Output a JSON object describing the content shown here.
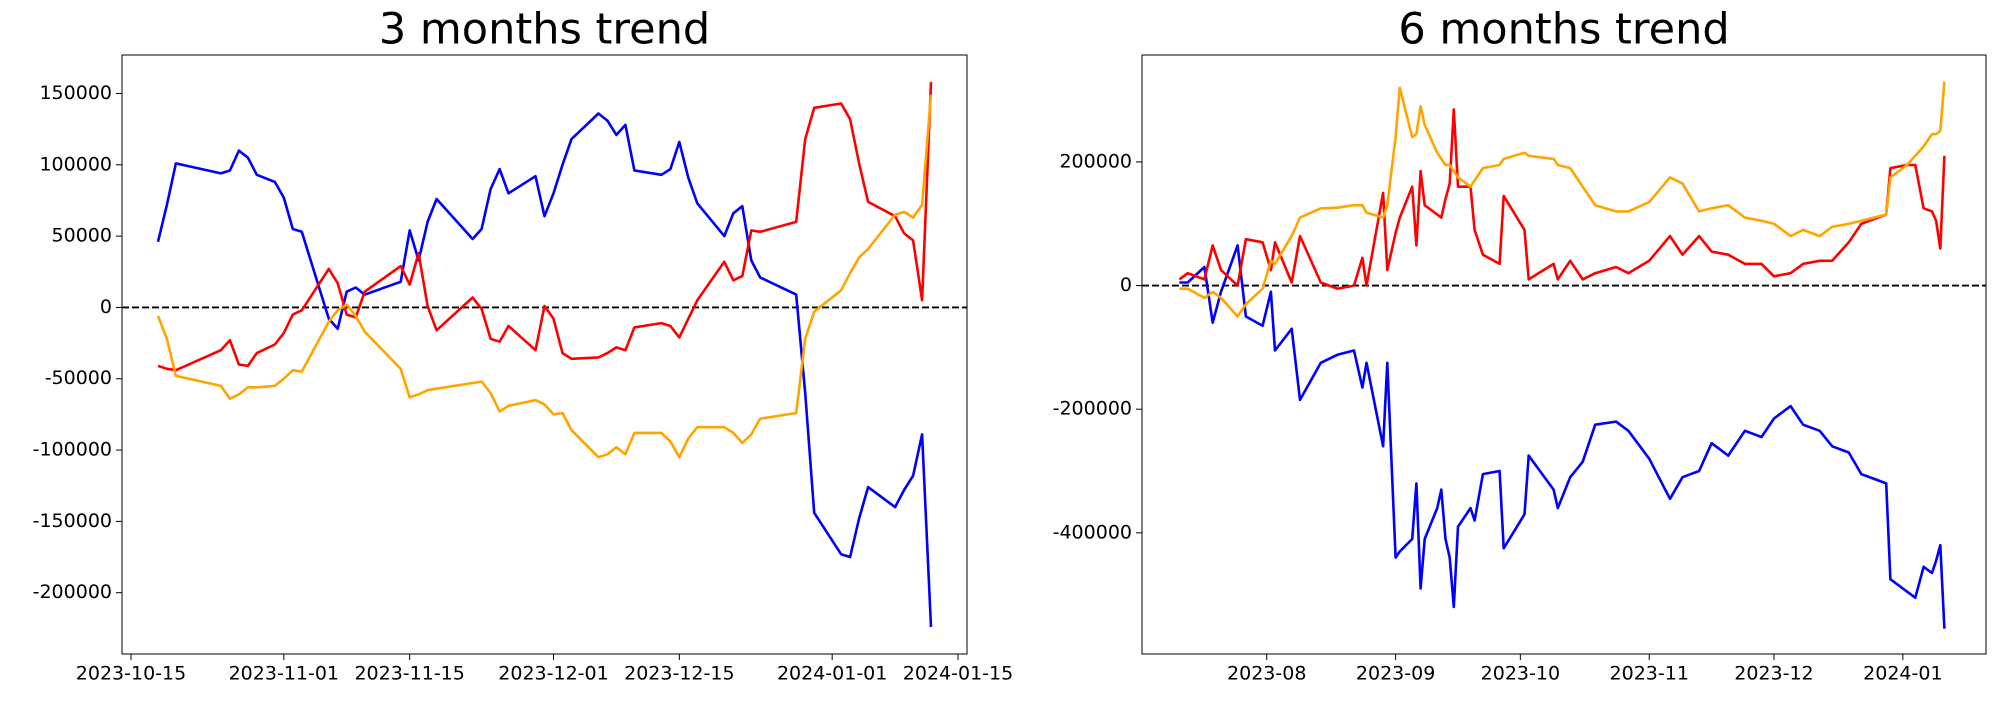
{
  "chart_data": [
    {
      "type": "line",
      "title": "3 months trend",
      "x": [
        "2023-10-18",
        "2023-10-19",
        "2023-10-20",
        "2023-10-25",
        "2023-10-26",
        "2023-10-27",
        "2023-10-28",
        "2023-10-29",
        "2023-10-31",
        "2023-11-01",
        "2023-11-02",
        "2023-11-03",
        "2023-11-06",
        "2023-11-07",
        "2023-11-08",
        "2023-11-09",
        "2023-11-10",
        "2023-11-14",
        "2023-11-15",
        "2023-11-16",
        "2023-11-17",
        "2023-11-18",
        "2023-11-22",
        "2023-11-23",
        "2023-11-24",
        "2023-11-25",
        "2023-11-26",
        "2023-11-29",
        "2023-11-30",
        "2023-12-01",
        "2023-12-02",
        "2023-12-03",
        "2023-12-06",
        "2023-12-07",
        "2023-12-08",
        "2023-12-09",
        "2023-12-10",
        "2023-12-13",
        "2023-12-14",
        "2023-12-15",
        "2023-12-16",
        "2023-12-17",
        "2023-12-20",
        "2023-12-21",
        "2023-12-22",
        "2023-12-23",
        "2023-12-24",
        "2023-12-28",
        "2023-12-29",
        "2023-12-30",
        "2024-01-02",
        "2024-01-03",
        "2024-01-04",
        "2024-01-05",
        "2024-01-08",
        "2024-01-09",
        "2024-01-10",
        "2024-01-11",
        "2024-01-12"
      ],
      "series": [
        {
          "color": "#0000ff",
          "values": [
            46000,
            72000,
            101000,
            94000,
            96000,
            110000,
            105000,
            93000,
            88000,
            77000,
            55000,
            53000,
            -8000,
            -15000,
            11000,
            14000,
            9000,
            18000,
            54000,
            33000,
            60000,
            76000,
            48000,
            55000,
            83000,
            97000,
            80000,
            92000,
            64000,
            80000,
            100000,
            118000,
            136000,
            131000,
            121000,
            128000,
            96000,
            93000,
            97000,
            116000,
            91000,
            73000,
            50000,
            66000,
            71000,
            33000,
            21000,
            9000,
            -60000,
            -144000,
            -173000,
            -175000,
            -148000,
            -126000,
            -140000,
            -128000,
            -118000,
            -89000,
            -224000
          ]
        },
        {
          "color": "#ff0000",
          "values": [
            -41000,
            -43000,
            -44000,
            -30000,
            -23000,
            -40000,
            -41000,
            -32000,
            -26000,
            -18000,
            -5000,
            -2000,
            27000,
            17000,
            -5000,
            -7000,
            11000,
            29000,
            16000,
            38000,
            1000,
            -16000,
            7000,
            -1000,
            -22000,
            -24000,
            -13000,
            -30000,
            1000,
            -8000,
            -32000,
            -36000,
            -35000,
            -32000,
            -28000,
            -30000,
            -14000,
            -11000,
            -13000,
            -21000,
            -8000,
            5000,
            32000,
            19000,
            22000,
            54000,
            53000,
            60000,
            118000,
            140000,
            143000,
            132000,
            101000,
            74000,
            64000,
            52000,
            47000,
            5000,
            158000
          ]
        },
        {
          "color": "#ffa500",
          "values": [
            -6000,
            -22000,
            -48000,
            -55000,
            -64000,
            -61000,
            -56000,
            -56000,
            -55000,
            -50000,
            -44000,
            -45000,
            -10000,
            -2000,
            2000,
            -6000,
            -17000,
            -43000,
            -63000,
            -61000,
            -58000,
            -57000,
            -53000,
            -52000,
            -60000,
            -73000,
            -69000,
            -65000,
            -68000,
            -75000,
            -74000,
            -86000,
            -105000,
            -103000,
            -98000,
            -103000,
            -88000,
            -88000,
            -94000,
            -105000,
            -92000,
            -84000,
            -84000,
            -88000,
            -95000,
            -89000,
            -78000,
            -74000,
            -22000,
            -3000,
            12000,
            24000,
            35000,
            41000,
            65000,
            67000,
            63000,
            72000,
            149000
          ]
        }
      ],
      "xlim": [
        "2023-10-14",
        "2024-01-16"
      ],
      "xticks": [
        "2023-10-15",
        "2023-11-01",
        "2023-11-15",
        "2023-12-01",
        "2023-12-15",
        "2024-01-01",
        "2024-01-15"
      ],
      "ylim": [
        -243000,
        177000
      ],
      "yticks": [
        -200000,
        -150000,
        -100000,
        -50000,
        0,
        50000,
        100000,
        150000
      ],
      "hline": 0
    },
    {
      "type": "line",
      "title": "6 months trend",
      "x": [
        "2023-07-11",
        "2023-07-13",
        "2023-07-17",
        "2023-07-19",
        "2023-07-21",
        "2023-07-25",
        "2023-07-27",
        "2023-07-31",
        "2023-08-02",
        "2023-08-03",
        "2023-08-07",
        "2023-08-09",
        "2023-08-14",
        "2023-08-18",
        "2023-08-22",
        "2023-08-24",
        "2023-08-25",
        "2023-08-29",
        "2023-08-30",
        "2023-09-01",
        "2023-09-02",
        "2023-09-05",
        "2023-09-06",
        "2023-09-07",
        "2023-09-08",
        "2023-09-11",
        "2023-09-12",
        "2023-09-13",
        "2023-09-14",
        "2023-09-15",
        "2023-09-16",
        "2023-09-19",
        "2023-09-20",
        "2023-09-22",
        "2023-09-26",
        "2023-09-27",
        "2023-10-02",
        "2023-10-03",
        "2023-10-09",
        "2023-10-10",
        "2023-10-13",
        "2023-10-16",
        "2023-10-19",
        "2023-10-24",
        "2023-10-27",
        "2023-11-01",
        "2023-11-06",
        "2023-11-09",
        "2023-11-13",
        "2023-11-16",
        "2023-11-20",
        "2023-11-24",
        "2023-11-28",
        "2023-12-01",
        "2023-12-05",
        "2023-12-08",
        "2023-12-12",
        "2023-12-15",
        "2023-12-19",
        "2023-12-22",
        "2023-12-28",
        "2023-12-29",
        "2024-01-02",
        "2024-01-04",
        "2024-01-06",
        "2024-01-08",
        "2024-01-09",
        "2024-01-10",
        "2024-01-11"
      ],
      "series": [
        {
          "color": "#0000ff",
          "values": [
            5000,
            5000,
            30000,
            -60000,
            -10000,
            65000,
            -50000,
            -65000,
            -10000,
            -105000,
            -70000,
            -185000,
            -125000,
            -112000,
            -105000,
            -165000,
            -125000,
            -260000,
            -125000,
            -440000,
            -430000,
            -410000,
            -320000,
            -490000,
            -410000,
            -360000,
            -330000,
            -410000,
            -440000,
            -520000,
            -390000,
            -360000,
            -380000,
            -305000,
            -300000,
            -425000,
            -370000,
            -275000,
            -330000,
            -360000,
            -310000,
            -285000,
            -225000,
            -220000,
            -235000,
            -280000,
            -345000,
            -310000,
            -300000,
            -255000,
            -275000,
            -235000,
            -245000,
            -215000,
            -195000,
            -225000,
            -235000,
            -260000,
            -270000,
            -305000,
            -320000,
            -475000,
            -495000,
            -505000,
            -455000,
            -465000,
            -445000,
            -420000,
            -555000
          ]
        },
        {
          "color": "#ff0000",
          "values": [
            10000,
            20000,
            10000,
            65000,
            25000,
            0,
            75000,
            70000,
            25000,
            70000,
            5000,
            80000,
            5000,
            -5000,
            0,
            45000,
            0,
            150000,
            25000,
            85000,
            110000,
            160000,
            65000,
            185000,
            130000,
            115000,
            110000,
            140000,
            165000,
            285000,
            160000,
            160000,
            90000,
            50000,
            35000,
            145000,
            90000,
            10000,
            35000,
            10000,
            40000,
            10000,
            20000,
            30000,
            20000,
            40000,
            80000,
            50000,
            80000,
            55000,
            50000,
            35000,
            35000,
            15000,
            20000,
            35000,
            40000,
            40000,
            70000,
            100000,
            115000,
            190000,
            195000,
            195000,
            125000,
            120000,
            105000,
            60000,
            210000
          ]
        },
        {
          "color": "#ffa500",
          "values": [
            -5000,
            -5000,
            -20000,
            -10000,
            -20000,
            -50000,
            -30000,
            -5000,
            40000,
            35000,
            80000,
            110000,
            125000,
            126000,
            130000,
            130000,
            118000,
            110000,
            130000,
            240000,
            320000,
            240000,
            245000,
            290000,
            260000,
            215000,
            205000,
            195000,
            195000,
            185000,
            175000,
            160000,
            170000,
            190000,
            195000,
            205000,
            215000,
            210000,
            205000,
            195000,
            190000,
            160000,
            130000,
            120000,
            120000,
            135000,
            175000,
            165000,
            120000,
            125000,
            130000,
            110000,
            105000,
            100000,
            80000,
            90000,
            80000,
            95000,
            100000,
            105000,
            115000,
            175000,
            195000,
            210000,
            225000,
            245000,
            245000,
            250000,
            330000
          ]
        }
      ],
      "xlim": [
        "2023-07-02",
        "2024-01-21"
      ],
      "xticks": [
        {
          "value": "2023-08-01",
          "label": "2023-08"
        },
        {
          "value": "2023-09-01",
          "label": "2023-09"
        },
        {
          "value": "2023-10-01",
          "label": "2023-10"
        },
        {
          "value": "2023-11-01",
          "label": "2023-11"
        },
        {
          "value": "2023-12-01",
          "label": "2023-12"
        },
        {
          "value": "2024-01-01",
          "label": "2024-01"
        }
      ],
      "ylim": [
        -596000,
        373000
      ],
      "yticks": [
        -400000,
        -200000,
        0,
        200000
      ],
      "hline": 0
    }
  ]
}
